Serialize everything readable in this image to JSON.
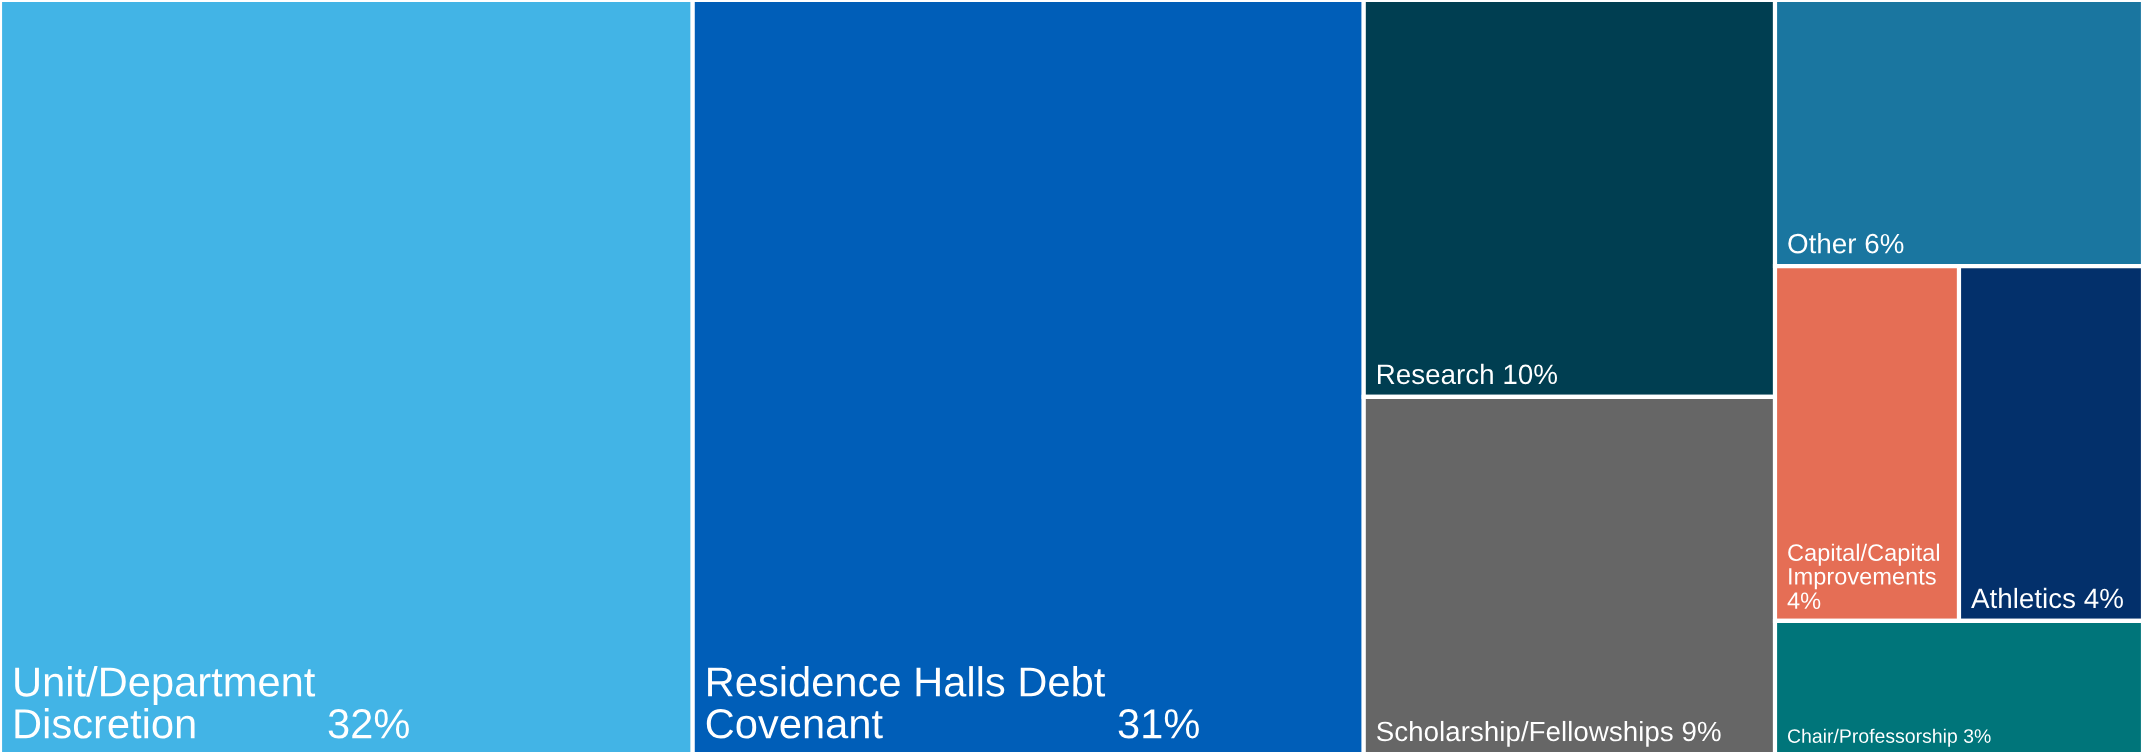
{
  "chart_data": {
    "type": "other",
    "categories": [
      "Unit/Department\nDiscretion",
      "Residence Halls Debt\nCovenant",
      "Research",
      "Scholarship/Fellowships",
      "Other",
      "Capital/Capital\nImprovements",
      "Athletics",
      "Chair/Professorship"
    ],
    "values": [
      32,
      31,
      10,
      9,
      6,
      4,
      4,
      3
    ],
    "value_labels": [
      "32%",
      "31%",
      "10%",
      "9%",
      "6%",
      "4%",
      "4%",
      "3%"
    ],
    "colors": [
      "#42b4e6",
      "#005eb8",
      "#003e51",
      "#666666",
      "#1a76a0",
      "#e56e55",
      "#03306b",
      "#00757a"
    ]
  }
}
